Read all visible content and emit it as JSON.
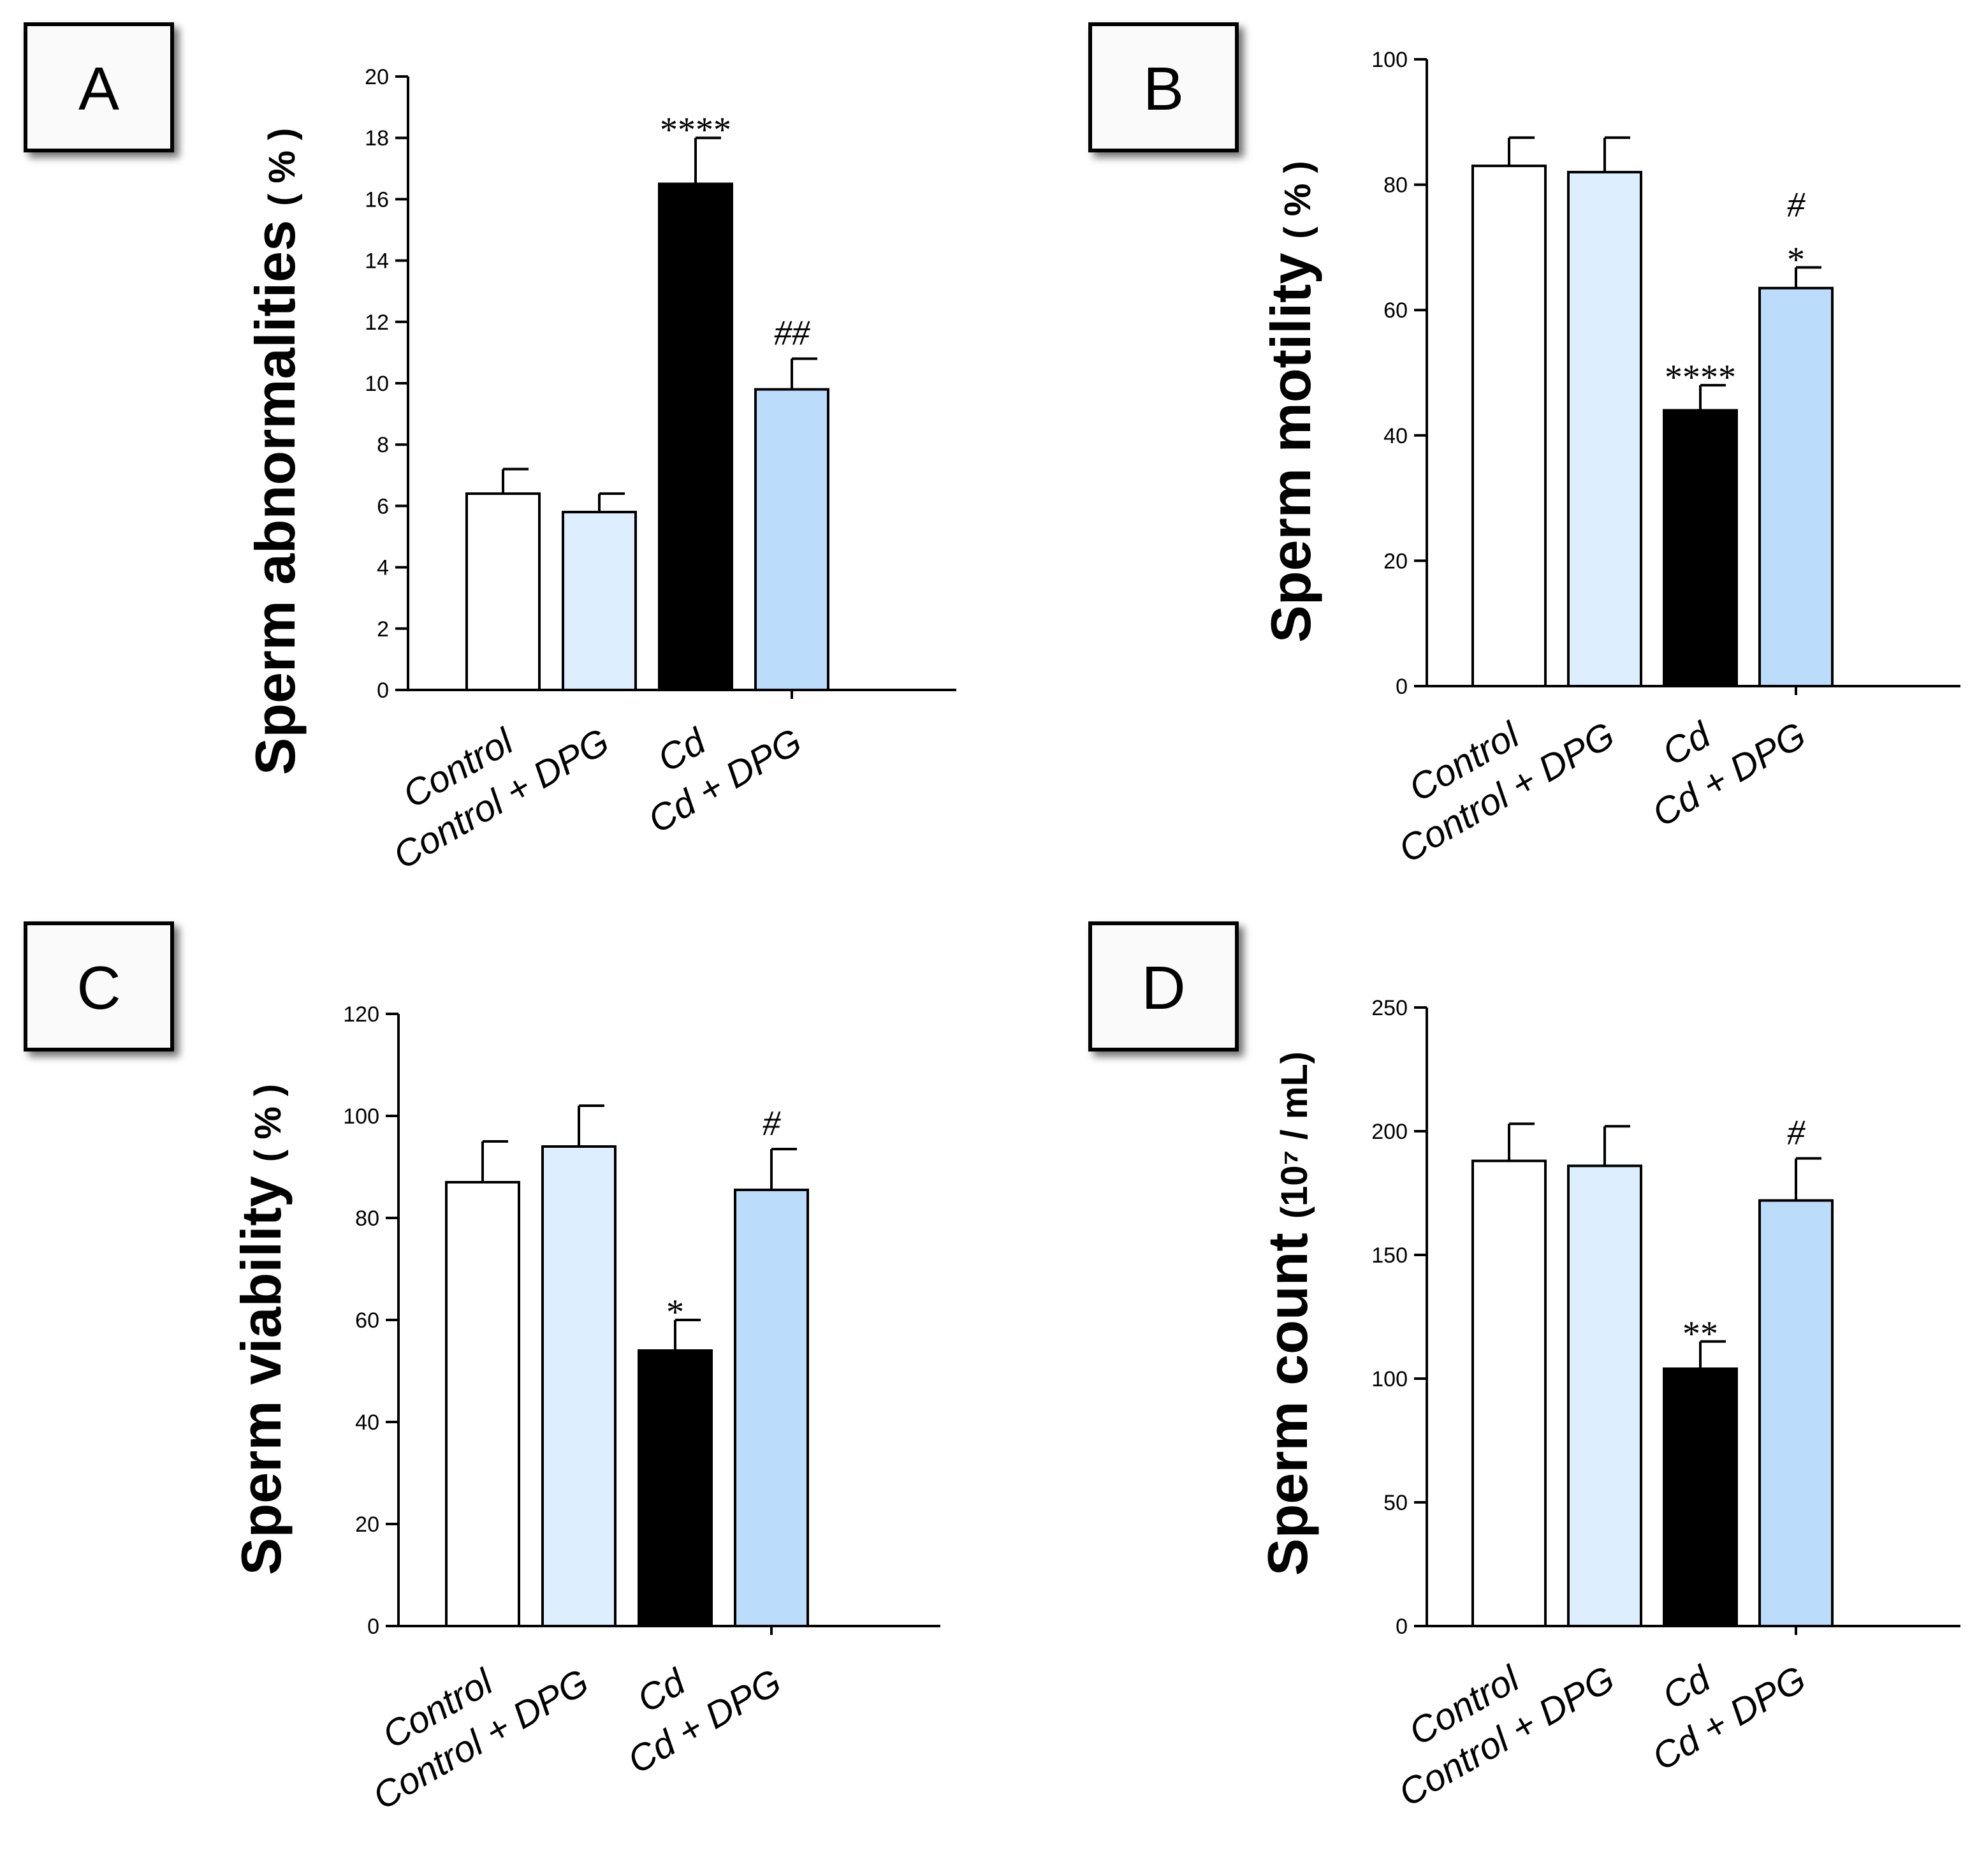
{
  "chart_data": [
    {
      "panel": "A",
      "type": "bar",
      "categories": [
        "Control",
        "Control + DPG",
        "Cd",
        "Cd + DPG"
      ],
      "values": [
        6.4,
        5.8,
        16.5,
        9.8
      ],
      "errors": [
        0.8,
        0.6,
        1.5,
        1.0
      ],
      "significance": [
        "",
        "",
        "****",
        "##"
      ],
      "colors": [
        "#ffffff",
        "#ddeefe",
        "#000000",
        "#bcdcfc"
      ],
      "ylabel": "Sperm abnormalities",
      "ylabel_unit": "( % )",
      "ylim": [
        0,
        20
      ],
      "yticks": [
        0,
        2,
        4,
        6,
        8,
        10,
        12,
        14,
        16,
        18,
        20
      ]
    },
    {
      "panel": "B",
      "type": "bar",
      "categories": [
        "Control",
        "Control + DPG",
        "Cd",
        "Cd + DPG"
      ],
      "values": [
        83,
        82,
        44,
        63.5
      ],
      "errors": [
        4.5,
        5.5,
        4,
        3.3
      ],
      "significance": [
        "",
        "",
        "****",
        "*|#"
      ],
      "colors": [
        "#ffffff",
        "#ddeefe",
        "#000000",
        "#bcdcfc"
      ],
      "ylabel": "Sperm motility",
      "ylabel_unit": "( % )",
      "ylim": [
        0,
        100
      ],
      "yticks": [
        0,
        20,
        40,
        60,
        80,
        100
      ]
    },
    {
      "panel": "C",
      "type": "bar",
      "categories": [
        "Control",
        "Control + DPG",
        "Cd",
        "Cd + DPG"
      ],
      "values": [
        87,
        94,
        54,
        85.5
      ],
      "errors": [
        8,
        8,
        6,
        8
      ],
      "significance": [
        "",
        "",
        "*",
        "#"
      ],
      "colors": [
        "#ffffff",
        "#ddeefe",
        "#000000",
        "#bcdcfc"
      ],
      "ylabel": "Sperm viability",
      "ylabel_unit": "( % )",
      "ylim": [
        0,
        120
      ],
      "yticks": [
        0,
        20,
        40,
        60,
        80,
        100,
        120
      ]
    },
    {
      "panel": "D",
      "type": "bar",
      "categories": [
        "Control",
        "Control + DPG",
        "Cd",
        "Cd + DPG"
      ],
      "values": [
        188,
        186,
        104,
        172
      ],
      "errors": [
        15,
        16,
        11,
        17
      ],
      "significance": [
        "",
        "",
        "**",
        "#"
      ],
      "colors": [
        "#ffffff",
        "#ddeefe",
        "#000000",
        "#bcdcfc"
      ],
      "ylabel": "Sperm count",
      "ylabel_unit": "(10⁷ / mL)",
      "ylim": [
        0,
        250
      ],
      "yticks": [
        0,
        50,
        100,
        150,
        200,
        250
      ]
    }
  ]
}
